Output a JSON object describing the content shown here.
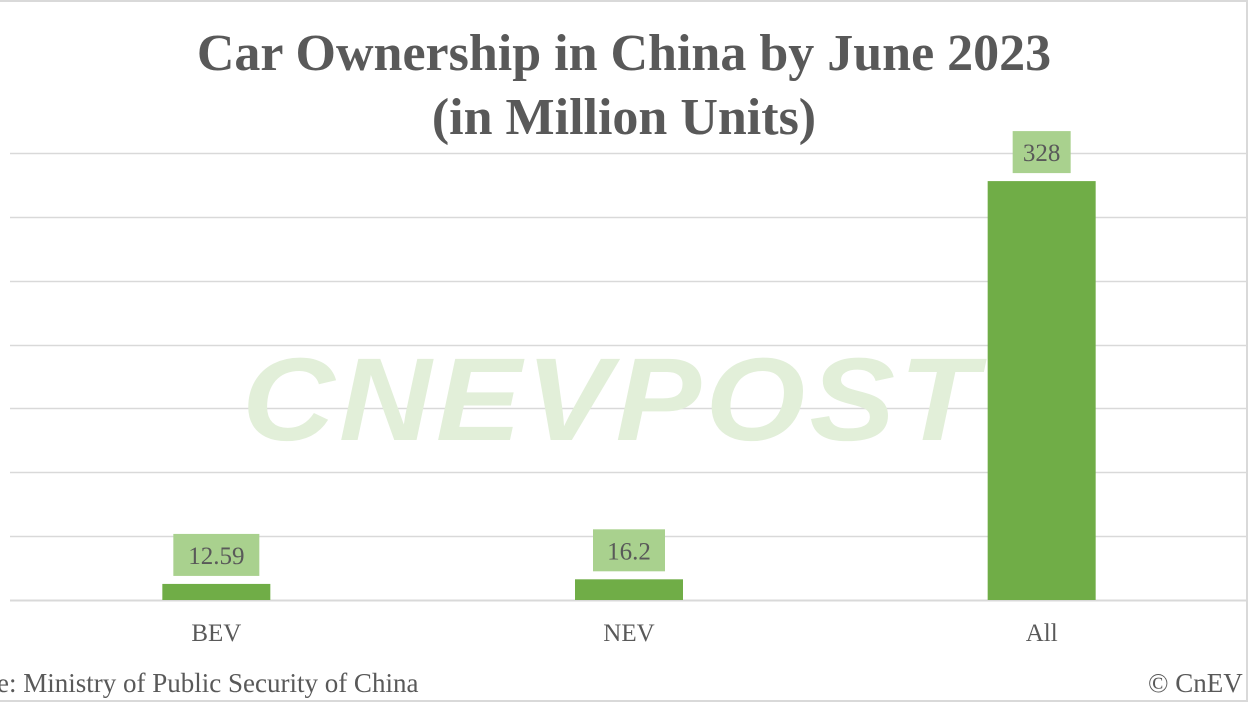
{
  "title_line1": "Car Ownership in China by June 2023",
  "title_line2": "(in Million Units)",
  "watermark": "CNEVPOST",
  "source_text": "rce: Ministry of Public Security of China",
  "copyright_text": "© CnEV",
  "colors": {
    "bar": "#70ad47",
    "label_bg": "#a9d18e",
    "gridline": "#d9d9d9",
    "text": "#595959",
    "watermark": "#e2efd9"
  },
  "chart_data": {
    "type": "bar",
    "title": "Car Ownership in China by June 2023 (in Million Units)",
    "categories": [
      "BEV",
      "NEV",
      "All"
    ],
    "series": [
      {
        "values": [
          12.59,
          16.2,
          328
        ]
      }
    ],
    "data_labels": [
      "12.59",
      "16.2",
      "328"
    ],
    "xlabel": "",
    "ylabel": "",
    "ylim": [
      0,
      350
    ],
    "y_axis_labels_shown": false,
    "grid": true,
    "legend": "none"
  }
}
